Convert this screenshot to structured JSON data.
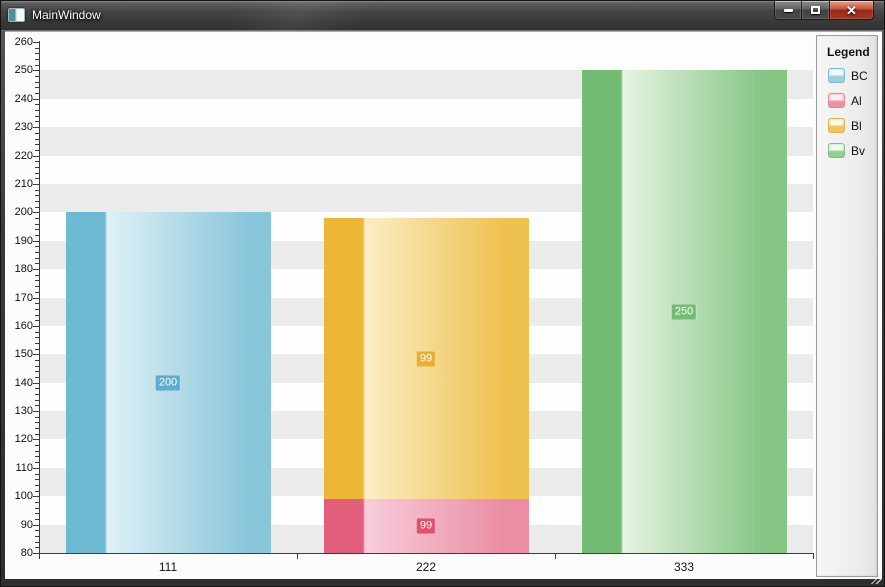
{
  "window": {
    "title": "MainWindow",
    "controls": [
      {
        "name": "minimize"
      },
      {
        "name": "maximize"
      },
      {
        "name": "close"
      }
    ]
  },
  "legend": {
    "title": "Legend",
    "items": [
      {
        "label": "BC",
        "marker_border": "#82b8c8",
        "marker_top": "#d9eef5",
        "marker_bottom": "#9cd0e0"
      },
      {
        "label": "Al",
        "marker_border": "#d98ca0",
        "marker_top": "#f8d3de",
        "marker_bottom": "#ec90a8"
      },
      {
        "label": "Bl",
        "marker_border": "#ddb054",
        "marker_top": "#fbebc0",
        "marker_bottom": "#f0c35c"
      },
      {
        "label": "Bv",
        "marker_border": "#88bd88",
        "marker_top": "#dff2db",
        "marker_bottom": "#96cd96"
      }
    ]
  },
  "chart_data": {
    "type": "bar",
    "stacked": true,
    "orientation": "vertical",
    "categories": [
      "111",
      "222",
      "333"
    ],
    "series": [
      {
        "name": "BC",
        "values": [
          200,
          null,
          null
        ],
        "color_dark": "#6fbad3",
        "color_light": "#dff1f6",
        "color_mid": "#8ac6db",
        "badge": "#5fadca"
      },
      {
        "name": "Al",
        "values": [
          null,
          99,
          null
        ],
        "color_dark": "#e15f7b",
        "color_light": "#f8cdda",
        "color_mid": "#ea8da5",
        "badge": "#e1516f"
      },
      {
        "name": "Bl",
        "values": [
          null,
          99,
          null
        ],
        "color_dark": "#ecb637",
        "color_light": "#fbedc6",
        "color_mid": "#efc14f",
        "badge": "#ebae2d"
      },
      {
        "name": "Bv",
        "values": [
          null,
          null,
          250
        ],
        "color_dark": "#74bc74",
        "color_light": "#e6f3e1",
        "color_mid": "#85c685",
        "badge": "#74bd74"
      }
    ],
    "data_labels": [
      "200",
      "99",
      "99",
      "250"
    ],
    "ylim": [
      80,
      260
    ],
    "y_ticks": [
      80,
      90,
      100,
      110,
      120,
      130,
      140,
      150,
      160,
      170,
      180,
      190,
      200,
      210,
      220,
      230,
      240,
      250,
      260
    ],
    "minor_tick_step": 2,
    "major_tick_step": 10,
    "band_color": "#ebebeb",
    "grid": "alternating-horizontal-bands",
    "legend_position": "right",
    "xlabel": "",
    "ylabel": "",
    "title": ""
  }
}
